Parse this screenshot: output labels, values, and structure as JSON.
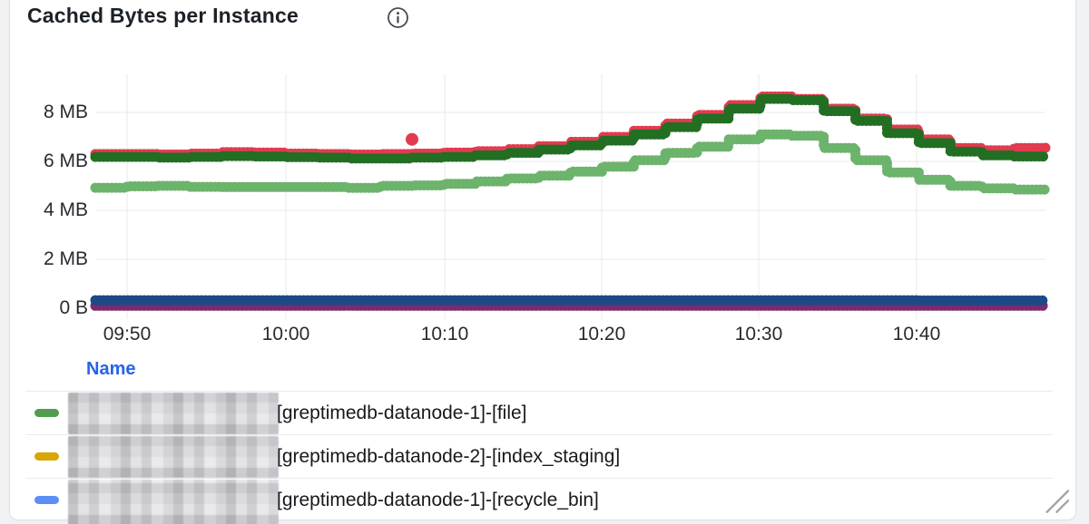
{
  "panel": {
    "title": "Cached Bytes per Instance"
  },
  "legend": {
    "header": "Name",
    "rows": [
      {
        "swatch_color": "#4f9e4f",
        "name": "[greptimedb-datanode-1]-[file]"
      },
      {
        "swatch_color": "#d8a706",
        "name": "[greptimedb-datanode-2]-[index_staging]"
      },
      {
        "swatch_color": "#5b8ff5",
        "name": "[greptimedb-datanode-1]-[recycle_bin]"
      }
    ]
  },
  "chart_data": {
    "type": "line",
    "title": "Cached Bytes per Instance",
    "interpolation": "step-after",
    "grid": true,
    "ylabel": "",
    "xlabel": "",
    "y_unit": "bytes",
    "y_tick_labels": [
      "8 MB",
      "6 MB",
      "4 MB",
      "2 MB",
      "0 B"
    ],
    "y_tick_values_mb": [
      8,
      6,
      4,
      2,
      0
    ],
    "ylim_mb": [
      0,
      9.5
    ],
    "x_tick_labels": [
      "09:50",
      "10:00",
      "10:10",
      "10:20",
      "10:30",
      "10:40"
    ],
    "x_range": [
      "09:48",
      "10:48"
    ],
    "x_step_minutes": 2,
    "series": [
      {
        "id": "series-purple",
        "color": "#7b2a6f",
        "values_mb": [
          0.1,
          0.1,
          0.1,
          0.1,
          0.1,
          0.1,
          0.1,
          0.1,
          0.1,
          0.1,
          0.1,
          0.1,
          0.1,
          0.1,
          0.1,
          0.1,
          0.1,
          0.1,
          0.1,
          0.1,
          0.1,
          0.1,
          0.1,
          0.1,
          0.1,
          0.1,
          0.1,
          0.1,
          0.1,
          0.1,
          0.1
        ]
      },
      {
        "id": "series-navy",
        "color": "#1b4a86",
        "values_mb": [
          0.33,
          0.33,
          0.33,
          0.33,
          0.33,
          0.33,
          0.33,
          0.33,
          0.33,
          0.33,
          0.33,
          0.33,
          0.33,
          0.33,
          0.33,
          0.33,
          0.33,
          0.33,
          0.33,
          0.33,
          0.33,
          0.33,
          0.33,
          0.33,
          0.33,
          0.33,
          0.32,
          0.32,
          0.32,
          0.32,
          0.32
        ]
      },
      {
        "id": "series-light-green",
        "color": "#6cb36c",
        "values_mb": [
          4.92,
          4.98,
          5.0,
          4.96,
          4.95,
          4.95,
          4.95,
          4.95,
          4.92,
          5.0,
          5.02,
          5.08,
          5.18,
          5.3,
          5.42,
          5.58,
          5.78,
          6.05,
          6.35,
          6.6,
          6.9,
          7.1,
          7.05,
          6.55,
          6.05,
          5.55,
          5.25,
          5.0,
          4.9,
          4.85,
          4.8
        ]
      },
      {
        "id": "series-red",
        "color": "#e13b50",
        "values_mb": [
          6.3,
          6.3,
          6.28,
          6.32,
          6.38,
          6.36,
          6.32,
          6.3,
          6.28,
          6.3,
          6.32,
          6.36,
          6.42,
          6.5,
          6.62,
          6.8,
          7.0,
          7.25,
          7.55,
          7.9,
          8.3,
          8.65,
          8.55,
          8.15,
          7.75,
          7.3,
          6.9,
          6.55,
          6.45,
          6.55,
          6.6
        ]
      },
      {
        "id": "series-dark-green",
        "color": "#226e22",
        "values_mb": [
          6.18,
          6.18,
          6.15,
          6.18,
          6.22,
          6.2,
          6.17,
          6.15,
          6.12,
          6.12,
          6.15,
          6.18,
          6.25,
          6.35,
          6.48,
          6.65,
          6.85,
          7.1,
          7.4,
          7.75,
          8.15,
          8.55,
          8.5,
          8.05,
          7.65,
          7.15,
          6.75,
          6.4,
          6.25,
          6.2,
          6.22
        ]
      }
    ],
    "outlier_point": {
      "series": "series-red",
      "x": "10:08",
      "value_mb": 6.9,
      "color": "#e13b50"
    }
  }
}
